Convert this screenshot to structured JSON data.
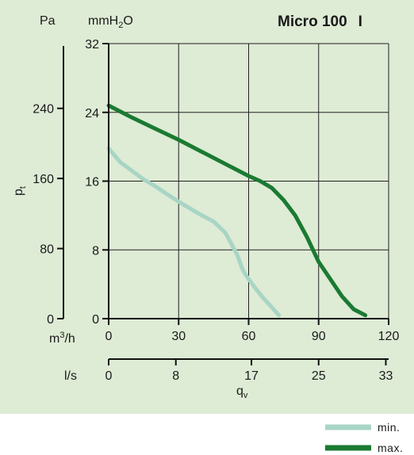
{
  "chart_data": {
    "type": "line",
    "title": "Micro 100",
    "title_suffix": "I",
    "background_color": "#deebd5",
    "page_background": "#ffffff",
    "y_axes": {
      "pa": {
        "unit": "Pa",
        "label": "p",
        "label_sub": "t",
        "ticks": [
          "0",
          "80",
          "160",
          "240"
        ],
        "tick_values": [
          0,
          80,
          160,
          240
        ]
      },
      "mmh2o": {
        "unit_prefix": "mmH",
        "unit_sub": "2",
        "unit_suffix": "O",
        "ticks": [
          "0",
          "8",
          "16",
          "24",
          "32"
        ],
        "tick_values": [
          0,
          8,
          16,
          24,
          32
        ],
        "ylim": [
          0,
          32
        ]
      }
    },
    "x_axes": {
      "m3h": {
        "unit_prefix": "m",
        "unit_sup": "3",
        "unit_suffix": "/h",
        "ticks": [
          "0",
          "30",
          "60",
          "90",
          "120"
        ],
        "tick_values": [
          0,
          30,
          60,
          90,
          120
        ],
        "xlim": [
          0,
          120
        ]
      },
      "ls": {
        "unit": "l/s",
        "ticks": [
          "0",
          "8",
          "17",
          "25",
          "33"
        ],
        "tick_values": [
          0,
          8,
          17,
          25,
          33
        ]
      },
      "label": "q",
      "label_sub": "v"
    },
    "grid": true,
    "legend_position": "bottom-right",
    "series": [
      {
        "name": "min.",
        "color": "#a8d5c5",
        "x": [
          0,
          5,
          10,
          15,
          20,
          25,
          30,
          35,
          40,
          45,
          50,
          55,
          57,
          58,
          60,
          63,
          66,
          70,
          73
        ],
        "y": [
          19.8,
          18.2,
          17.2,
          16.2,
          15.4,
          14.5,
          13.6,
          12.8,
          12.0,
          11.3,
          10.0,
          7.5,
          6.0,
          5.4,
          4.6,
          3.5,
          2.5,
          1.3,
          0.4
        ]
      },
      {
        "name": "max.",
        "color": "#1a7a32",
        "x": [
          0,
          10,
          20,
          30,
          40,
          50,
          60,
          65,
          70,
          75,
          80,
          85,
          90,
          95,
          100,
          105,
          110
        ],
        "y": [
          24.8,
          23.4,
          22.1,
          20.8,
          19.4,
          18.0,
          16.6,
          16.0,
          15.2,
          13.8,
          12.0,
          9.5,
          6.6,
          4.6,
          2.6,
          1.1,
          0.4
        ]
      }
    ]
  }
}
